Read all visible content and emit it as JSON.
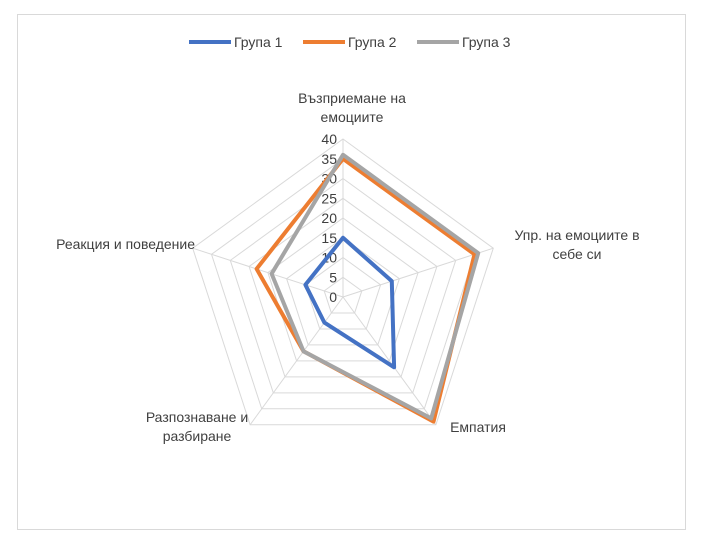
{
  "chart_data": {
    "type": "radar",
    "title": "",
    "categories": [
      [
        "Възприемане на",
        "емоциите"
      ],
      [
        "Упр. на емоциите в",
        "себе си"
      ],
      [
        "Емпатия"
      ],
      [
        "Разпознаване и",
        "разбиране"
      ],
      [
        "Реакция и поведение"
      ]
    ],
    "rlim": [
      0,
      40
    ],
    "ticks": [
      "0",
      "5",
      "10",
      "15",
      "20",
      "25",
      "30",
      "35",
      "40"
    ],
    "grid": true,
    "legend_position": "top",
    "series": [
      {
        "name": "Група 1",
        "color": "#4472c4",
        "values": [
          15,
          13,
          22,
          8,
          10
        ]
      },
      {
        "name": "Група 2",
        "color": "#ed7d31",
        "values": [
          35,
          35,
          39,
          17,
          23
        ]
      },
      {
        "name": "Група 3",
        "color": "#a5a5a5",
        "values": [
          36,
          36,
          38,
          17,
          19
        ]
      }
    ]
  }
}
